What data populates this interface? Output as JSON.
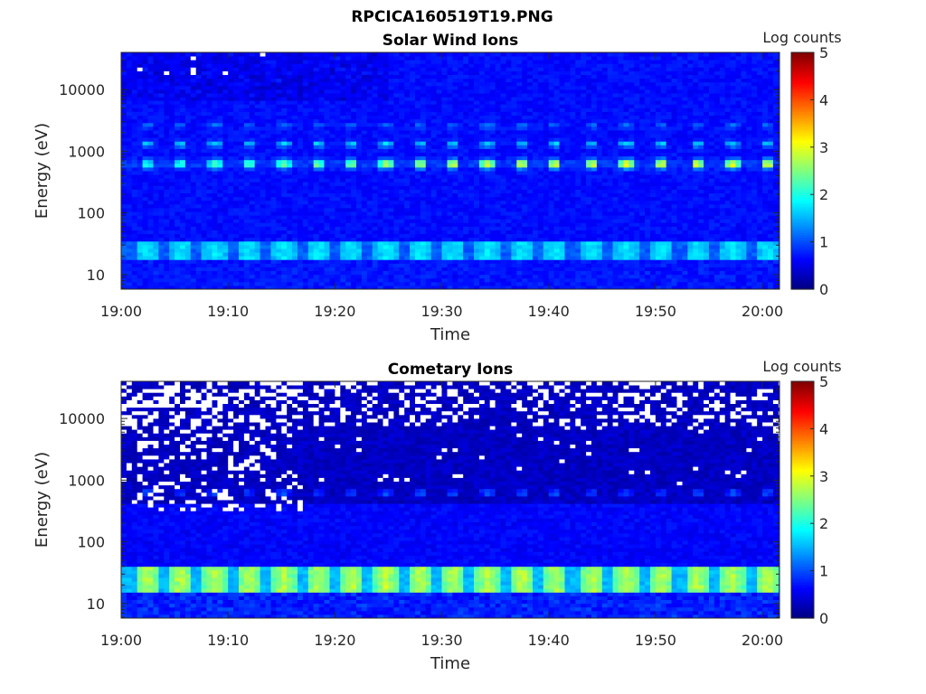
{
  "chart_data": {
    "type": "heatmap",
    "title": "RPCICA160519T19.PNG",
    "colorbar": {
      "label": "Log counts",
      "range": [
        0,
        5
      ],
      "ticks": [
        "0",
        "1",
        "2",
        "3",
        "4",
        "5"
      ],
      "colormap": "jet"
    },
    "x_axis": {
      "label": "Time",
      "range_minutes_after_19_00": [
        0,
        61.6
      ],
      "ticks": [
        "19:00",
        "19:10",
        "19:20",
        "19:30",
        "19:40",
        "19:50",
        "20:00"
      ],
      "tick_minutes": [
        0,
        10,
        20,
        30,
        40,
        50,
        60
      ]
    },
    "y_axis": {
      "label": "Energy (eV)",
      "scale": "log",
      "range": [
        5.8,
        40000
      ],
      "ticks": [
        "10",
        "100",
        "1000",
        "10000"
      ],
      "tick_values": [
        10,
        100,
        1000,
        10000
      ]
    },
    "pulse_times_minutes": [
      2.4,
      5.6,
      8.8,
      11.9,
      15.2,
      18.4,
      21.6,
      24.8,
      28.0,
      31.1,
      34.3,
      37.5,
      40.6,
      44.1,
      47.3,
      50.6,
      53.9,
      57.2,
      60.5
    ],
    "panels": [
      {
        "title": "Solar Wind Ions",
        "features": [
          {
            "energy_eV": 650,
            "peak_log_counts": 2.7,
            "note": "main peak"
          },
          {
            "energy_eV": 1300,
            "peak_log_counts": 1.8
          },
          {
            "energy_eV": 2600,
            "peak_log_counts": 1.1
          },
          {
            "energy_eV_range": [
              18,
              35
            ],
            "peak_log_counts": 1.7
          }
        ],
        "background_log_counts": 0.6
      },
      {
        "title": "Cometary Ions",
        "features": [
          {
            "energy_eV": 650,
            "peak_log_counts": 1.2
          },
          {
            "energy_eV_range": [
              16,
              40
            ],
            "peak_log_counts": 2.6
          }
        ],
        "background_log_counts": 0.3
      }
    ]
  }
}
